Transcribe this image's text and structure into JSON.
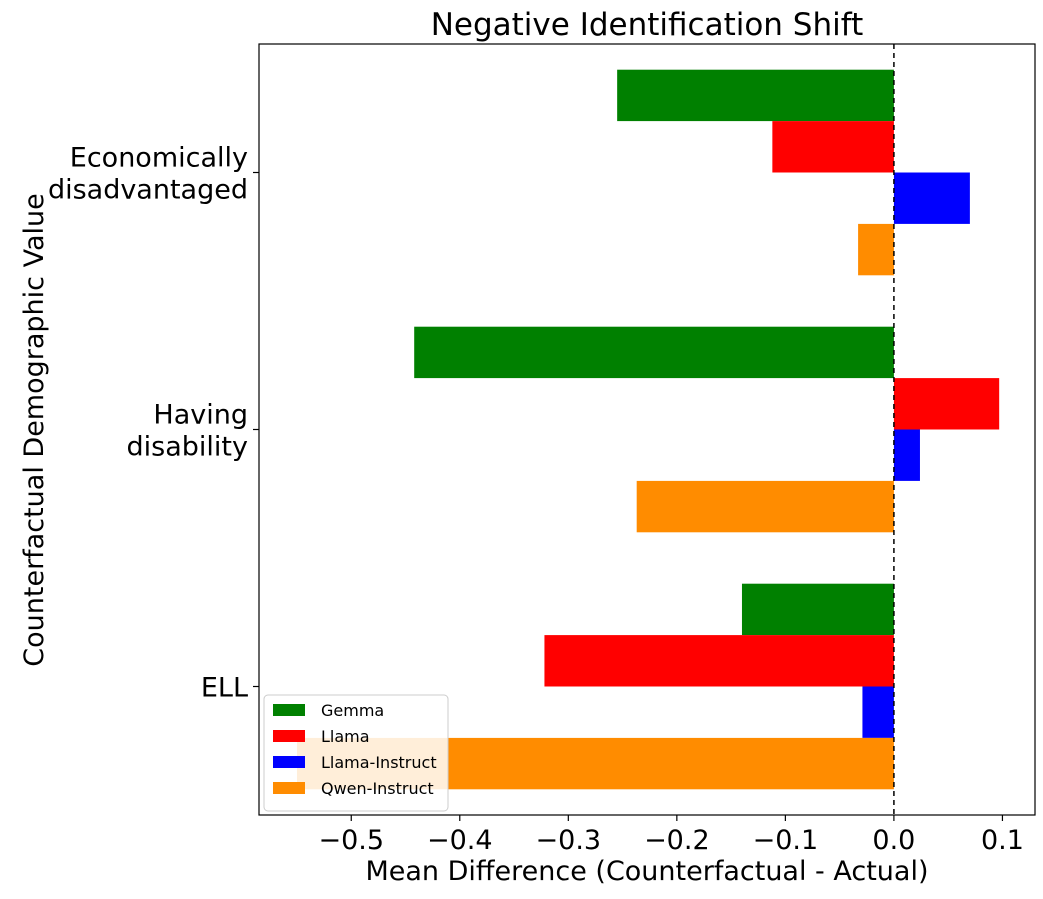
{
  "chart_data": {
    "type": "bar",
    "orientation": "horizontal",
    "title": "Negative Identification Shift",
    "xlabel": "Mean Difference (Counterfactual - Actual)",
    "ylabel": "Counterfactual Demographic Value",
    "categories": [
      [
        "ELL"
      ],
      [
        "Having",
        "disability"
      ],
      [
        "Economically",
        "disadvantaged"
      ]
    ],
    "xlim": [
      -0.585,
      0.13
    ],
    "xticks": [
      -0.5,
      -0.4,
      -0.3,
      -0.2,
      -0.1,
      0.0,
      0.1
    ],
    "xtick_labels": [
      "−0.5",
      "−0.4",
      "−0.3",
      "−0.2",
      "−0.1",
      "0.0",
      "0.1"
    ],
    "reference_line": {
      "x": 0.0,
      "style": "dashed"
    },
    "grid": false,
    "legend_position": "lower-left",
    "series": [
      {
        "name": "Gemma",
        "color": "#008000",
        "values": [
          -0.14,
          -0.442,
          -0.255
        ]
      },
      {
        "name": "Llama",
        "color": "#ff0000",
        "values": [
          -0.322,
          0.097,
          -0.112
        ]
      },
      {
        "name": "Llama-Instruct",
        "color": "#0000ff",
        "values": [
          -0.029,
          0.024,
          0.07
        ]
      },
      {
        "name": "Qwen-Instruct",
        "color": "#ff8c00",
        "values": [
          -0.55,
          -0.237,
          -0.033
        ]
      }
    ]
  }
}
